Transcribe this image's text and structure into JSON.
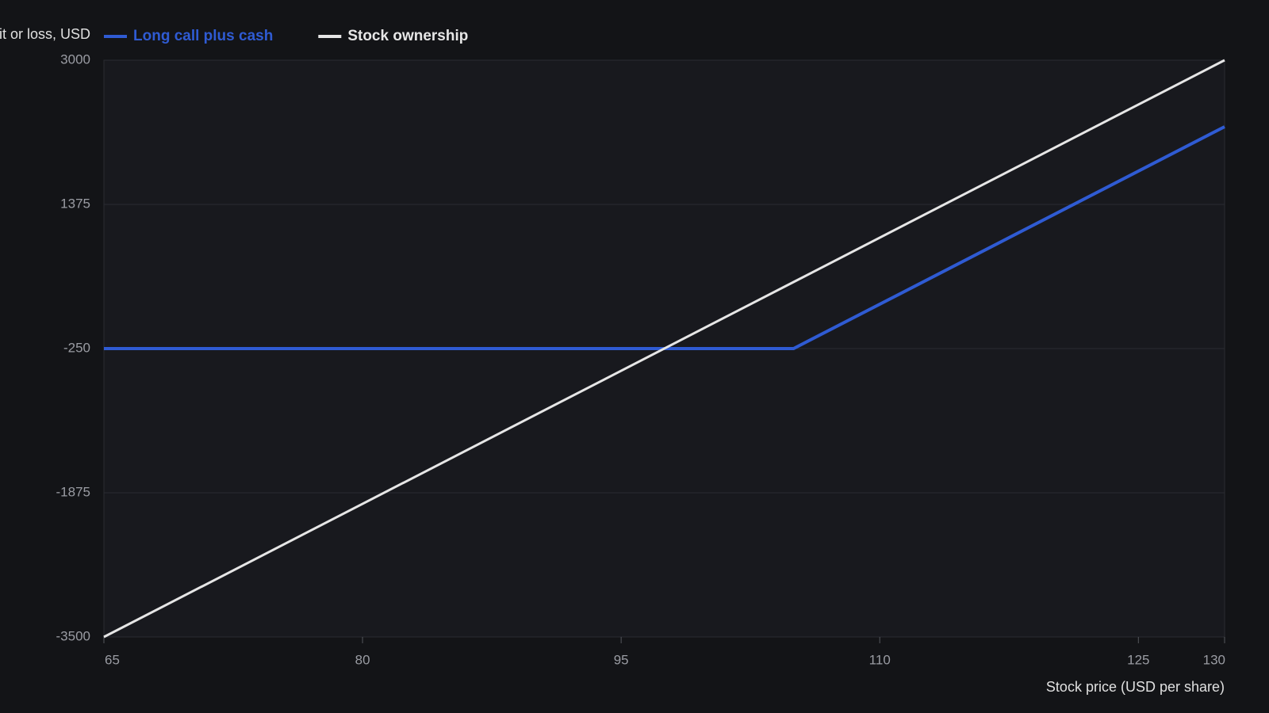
{
  "chart_data": {
    "type": "line",
    "y_label": "Profit or loss, USD",
    "x_label": "Stock price (USD per share)",
    "x": [
      65,
      105,
      130
    ],
    "series": [
      {
        "name": "Long call plus cash",
        "color": "#2f5bd3",
        "values": [
          -250,
          -250,
          2250
        ]
      },
      {
        "name": "Stock ownership",
        "color": "#e6e6e6",
        "values": [
          -3500,
          500,
          3000
        ]
      }
    ],
    "xlim": [
      65,
      130
    ],
    "xticks": [
      65,
      80,
      95,
      110,
      125,
      130
    ],
    "ylim": [
      -3500,
      3000
    ],
    "yticks": [
      -3500,
      -1875,
      -250,
      1375,
      3000
    ],
    "grid": true
  }
}
